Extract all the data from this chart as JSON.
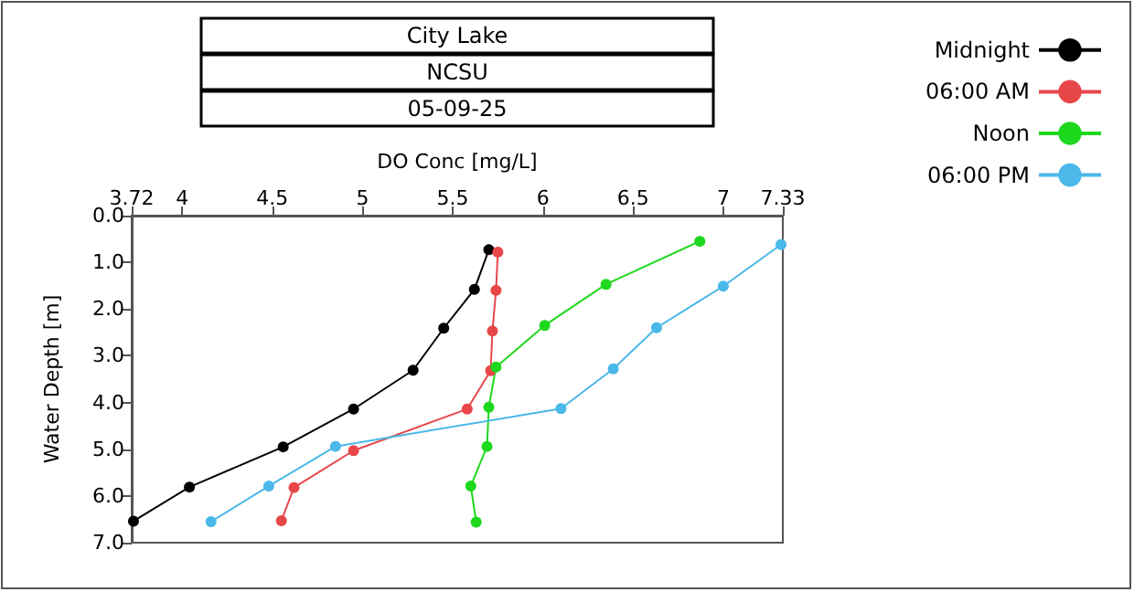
{
  "chart_data": {
    "type": "line",
    "title": "City Lake",
    "subtitle": "NCSU",
    "annotations": [
      "05-09-25"
    ],
    "xlabel": "DO Conc [mg/L]",
    "ylabel": "Water Depth [m]",
    "xlim": [
      3.72,
      7.33
    ],
    "xticks": [
      3.72,
      4,
      4.5,
      5,
      5.5,
      6,
      6.5,
      7,
      7.33
    ],
    "ylim": [
      7,
      0
    ],
    "yticks": [
      {
        "value": 0,
        "label": "0.0"
      },
      {
        "value": 1,
        "label": "1.0"
      },
      {
        "value": 2,
        "label": "2.0"
      },
      {
        "value": 3,
        "label": "3.0"
      },
      {
        "value": 4,
        "label": "4.0"
      },
      {
        "value": 5,
        "label": "5.0"
      },
      {
        "value": 6,
        "label": "6.0"
      },
      {
        "value": 7,
        "label": "7.0"
      }
    ],
    "grid": false,
    "legend": "top right",
    "marker": "circle",
    "line_style": "solid",
    "series": [
      {
        "name": "Midnight",
        "color": "#000000",
        "x": [
          5.7,
          5.62,
          5.45,
          5.28,
          4.95,
          4.56,
          4.04,
          3.73
        ],
        "values": [
          0.73,
          1.58,
          2.41,
          3.31,
          4.14,
          4.95,
          5.81,
          6.54
        ]
      },
      {
        "name": "06:00 AM",
        "color": "#e8474a",
        "x": [
          5.75,
          5.74,
          5.72,
          5.71,
          5.58,
          4.95,
          4.62,
          4.55
        ],
        "values": [
          0.78,
          1.6,
          2.47,
          3.32,
          4.14,
          5.03,
          5.82,
          6.53
        ]
      },
      {
        "name": "Noon",
        "color": "#1ed81e",
        "x": [
          6.87,
          6.35,
          6.01,
          5.74,
          5.7,
          5.69,
          5.6,
          5.63
        ],
        "values": [
          0.55,
          1.47,
          2.35,
          3.24,
          4.1,
          4.94,
          5.79,
          6.56
        ]
      },
      {
        "name": "06:00 PM",
        "color": "#4ab8e8",
        "x": [
          7.32,
          7.0,
          6.63,
          6.39,
          6.1,
          4.85,
          4.48,
          4.16
        ],
        "values": [
          0.62,
          1.51,
          2.4,
          3.28,
          4.13,
          4.94,
          5.79,
          6.55
        ]
      }
    ]
  }
}
